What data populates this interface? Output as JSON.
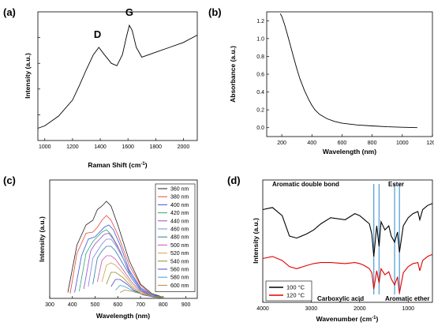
{
  "panels": {
    "a": {
      "label": "(a)",
      "xlabel_main": "Raman Shift (cm",
      "xlabel_sup": "-1",
      "xlabel_end": ")",
      "ylabel": "Intensity (a.u.)",
      "peak_labels": [
        "D",
        "G"
      ]
    },
    "b": {
      "label": "(b)",
      "xlabel": "Wavelength (nm)",
      "ylabel": "Absorbance (a.u.)"
    },
    "c": {
      "label": "(c)",
      "xlabel": "Wavelength (nm)",
      "ylabel": "Intensity (a.u.)"
    },
    "d": {
      "label": "(d)",
      "xlabel_main": "Wavenumber (cm",
      "xlabel_sup": "-1",
      "xlabel_end": ")",
      "ylabel": "Intensity (a.u.)",
      "annotations": [
        "Aromatic double bond",
        "Ester",
        "Carboxylic acid",
        "Aromatic ether"
      ]
    }
  },
  "chart_data": [
    {
      "panel": "a",
      "type": "line",
      "xlabel": "Raman Shift (cm-1)",
      "ylabel": "Intensity (a.u.)",
      "xlim": [
        950,
        2100
      ],
      "x_ticks": [
        1000,
        1200,
        1400,
        1600,
        1800,
        2000
      ],
      "y_ticks_labeled": false,
      "grid": false,
      "series": [
        {
          "x": [
            950,
            1000,
            1100,
            1200,
            1250,
            1300,
            1350,
            1390,
            1430,
            1480,
            1520,
            1560,
            1590,
            1610,
            1630,
            1660,
            1700,
            1800,
            1900,
            2000,
            2100
          ],
          "y": [
            0.1,
            0.12,
            0.2,
            0.33,
            0.45,
            0.58,
            0.7,
            0.76,
            0.7,
            0.63,
            0.61,
            0.7,
            0.85,
            0.94,
            0.9,
            0.76,
            0.68,
            0.72,
            0.76,
            0.8,
            0.86
          ],
          "color": "#000000"
        }
      ],
      "annotations": [
        {
          "text": "D",
          "x": 1380
        },
        {
          "text": "G",
          "x": 1610
        }
      ]
    },
    {
      "panel": "b",
      "type": "line",
      "xlabel": "Wavelength (nm)",
      "ylabel": "Absorbance (a.u.)",
      "xlim": [
        100,
        1200
      ],
      "ylim": [
        -0.1,
        1.3
      ],
      "x_ticks": [
        200,
        400,
        600,
        800,
        1000,
        1200
      ],
      "y_ticks": [
        0.0,
        0.2,
        0.4,
        0.6,
        0.8,
        1.0,
        1.2
      ],
      "grid": false,
      "series": [
        {
          "x": [
            190,
            200,
            220,
            250,
            280,
            300,
            320,
            350,
            380,
            400,
            420,
            450,
            500,
            550,
            600,
            700,
            800,
            900,
            1000,
            1100
          ],
          "y": [
            1.28,
            1.25,
            1.15,
            0.97,
            0.78,
            0.66,
            0.55,
            0.42,
            0.31,
            0.25,
            0.2,
            0.15,
            0.1,
            0.07,
            0.05,
            0.03,
            0.02,
            0.01,
            0.005,
            0.0
          ],
          "color": "#000000"
        }
      ]
    },
    {
      "panel": "c",
      "type": "line",
      "xlabel": "Wavelength (nm)",
      "ylabel": "Intensity (a.u.)",
      "xlim": [
        300,
        950
      ],
      "x_ticks": [
        300,
        400,
        500,
        600,
        700,
        800,
        900
      ],
      "y_ticks_labeled": false,
      "grid": false,
      "legend_position": "top-right",
      "series": [
        {
          "name": "360 nm",
          "color": "#222222",
          "x": [
            380,
            420,
            460,
            490,
            510,
            530,
            550,
            570,
            600,
            650,
            700,
            750,
            800
          ],
          "y": [
            0.05,
            0.45,
            0.62,
            0.66,
            0.75,
            0.78,
            0.82,
            0.78,
            0.62,
            0.32,
            0.12,
            0.04,
            0.01
          ]
        },
        {
          "name": "380 nm",
          "color": "#e8463a",
          "x": [
            390,
            420,
            460,
            490,
            510,
            530,
            550,
            570,
            600,
            650,
            700,
            750,
            800
          ],
          "y": [
            0.04,
            0.38,
            0.55,
            0.56,
            0.6,
            0.66,
            0.7,
            0.66,
            0.54,
            0.28,
            0.11,
            0.03,
            0.01
          ]
        },
        {
          "name": "400 nm",
          "color": "#3a56d8",
          "x": [
            410,
            440,
            470,
            500,
            520,
            540,
            560,
            580,
            610,
            650,
            700,
            750,
            800
          ],
          "y": [
            0.05,
            0.36,
            0.5,
            0.52,
            0.56,
            0.6,
            0.62,
            0.58,
            0.45,
            0.24,
            0.09,
            0.03,
            0.01
          ]
        },
        {
          "name": "420 nm",
          "color": "#34a86e",
          "x": [
            430,
            460,
            490,
            510,
            530,
            550,
            570,
            600,
            650,
            700,
            750,
            800
          ],
          "y": [
            0.06,
            0.38,
            0.48,
            0.52,
            0.56,
            0.58,
            0.54,
            0.44,
            0.22,
            0.08,
            0.02,
            0.01
          ]
        },
        {
          "name": "440 nm",
          "color": "#9a4ad0",
          "x": [
            450,
            480,
            500,
            520,
            540,
            560,
            580,
            610,
            650,
            700,
            750,
            800
          ],
          "y": [
            0.08,
            0.4,
            0.46,
            0.5,
            0.54,
            0.55,
            0.5,
            0.4,
            0.22,
            0.08,
            0.02,
            0.01
          ]
        },
        {
          "name": "460 nm",
          "color": "#7b84dd",
          "x": [
            470,
            490,
            510,
            530,
            550,
            570,
            590,
            620,
            660,
            700,
            750,
            800
          ],
          "y": [
            0.1,
            0.34,
            0.4,
            0.46,
            0.5,
            0.5,
            0.45,
            0.35,
            0.19,
            0.08,
            0.02,
            0.01
          ]
        },
        {
          "name": "480 nm",
          "color": "#2d7fa0",
          "x": [
            490,
            510,
            530,
            550,
            570,
            590,
            620,
            660,
            700,
            750,
            800
          ],
          "y": [
            0.12,
            0.34,
            0.4,
            0.44,
            0.44,
            0.4,
            0.3,
            0.17,
            0.07,
            0.02,
            0.01
          ]
        },
        {
          "name": "500 nm",
          "color": "#d04fb0",
          "x": [
            510,
            530,
            550,
            570,
            590,
            620,
            660,
            700,
            750,
            800
          ],
          "y": [
            0.14,
            0.32,
            0.36,
            0.36,
            0.33,
            0.25,
            0.14,
            0.06,
            0.02,
            0.01
          ]
        },
        {
          "name": "520 nm",
          "color": "#d6a24a",
          "x": [
            530,
            550,
            570,
            590,
            620,
            660,
            700,
            750,
            800
          ],
          "y": [
            0.14,
            0.28,
            0.3,
            0.28,
            0.22,
            0.12,
            0.05,
            0.02,
            0.01
          ]
        },
        {
          "name": "540 nm",
          "color": "#8c8c30",
          "x": [
            550,
            570,
            590,
            620,
            660,
            700,
            750,
            800
          ],
          "y": [
            0.12,
            0.22,
            0.22,
            0.18,
            0.1,
            0.04,
            0.02,
            0.01
          ]
        },
        {
          "name": "560 nm",
          "color": "#4a4ad0",
          "x": [
            570,
            590,
            610,
            640,
            670,
            710,
            760,
            800
          ],
          "y": [
            0.1,
            0.16,
            0.16,
            0.12,
            0.07,
            0.03,
            0.01,
            0.005
          ]
        },
        {
          "name": "580 nm",
          "color": "#3aa0d0",
          "x": [
            590,
            610,
            630,
            660,
            700,
            740,
            800
          ],
          "y": [
            0.07,
            0.11,
            0.1,
            0.07,
            0.04,
            0.02,
            0.005
          ]
        },
        {
          "name": "600 nm",
          "color": "#b08a3a",
          "x": [
            610,
            630,
            660,
            700,
            740,
            800
          ],
          "y": [
            0.05,
            0.07,
            0.06,
            0.04,
            0.02,
            0.005
          ]
        }
      ]
    },
    {
      "panel": "d",
      "type": "line",
      "xlabel": "Wavenumber (cm-1)",
      "ylabel": "Intensity (a.u.)",
      "xlim": [
        4000,
        500
      ],
      "x_ticks": [
        4000,
        3000,
        2000,
        1000
      ],
      "y_ticks_labeled": false,
      "grid": false,
      "legend_position": "bottom-left",
      "vertical_lines_x": [
        1710,
        1600,
        1280,
        1180
      ],
      "series": [
        {
          "name": "100 °C",
          "color": "#000000",
          "x": [
            4000,
            3800,
            3600,
            3450,
            3300,
            3100,
            2950,
            2800,
            2600,
            2300,
            2100,
            2000,
            1900,
            1800,
            1750,
            1710,
            1650,
            1600,
            1560,
            1480,
            1400,
            1350,
            1280,
            1220,
            1180,
            1100,
            1000,
            900,
            800,
            760,
            700,
            600,
            500
          ],
          "y": [
            0.86,
            0.88,
            0.8,
            0.6,
            0.58,
            0.62,
            0.66,
            0.72,
            0.78,
            0.76,
            0.82,
            0.8,
            0.76,
            0.72,
            0.62,
            0.4,
            0.7,
            0.5,
            0.74,
            0.66,
            0.7,
            0.6,
            0.54,
            0.64,
            0.44,
            0.7,
            0.78,
            0.82,
            0.84,
            0.76,
            0.86,
            0.9,
            0.92
          ]
        },
        {
          "name": "120 °C",
          "color": "#e00000",
          "x": [
            4000,
            3800,
            3600,
            3450,
            3300,
            3100,
            2950,
            2800,
            2600,
            2300,
            2100,
            2000,
            1900,
            1800,
            1750,
            1710,
            1650,
            1600,
            1560,
            1480,
            1400,
            1350,
            1280,
            1220,
            1180,
            1100,
            1000,
            900,
            800,
            760,
            700,
            600,
            500
          ],
          "y": [
            0.38,
            0.4,
            0.36,
            0.3,
            0.28,
            0.31,
            0.33,
            0.34,
            0.34,
            0.33,
            0.34,
            0.33,
            0.31,
            0.28,
            0.24,
            0.08,
            0.26,
            0.14,
            0.28,
            0.22,
            0.25,
            0.18,
            0.12,
            0.2,
            0.04,
            0.24,
            0.3,
            0.33,
            0.34,
            0.26,
            0.36,
            0.4,
            0.42
          ]
        }
      ],
      "annotations": [
        {
          "text": "Aromatic double bond"
        },
        {
          "text": "Ester"
        },
        {
          "text": "Carboxylic acid"
        },
        {
          "text": "Aromatic ether"
        }
      ]
    }
  ]
}
